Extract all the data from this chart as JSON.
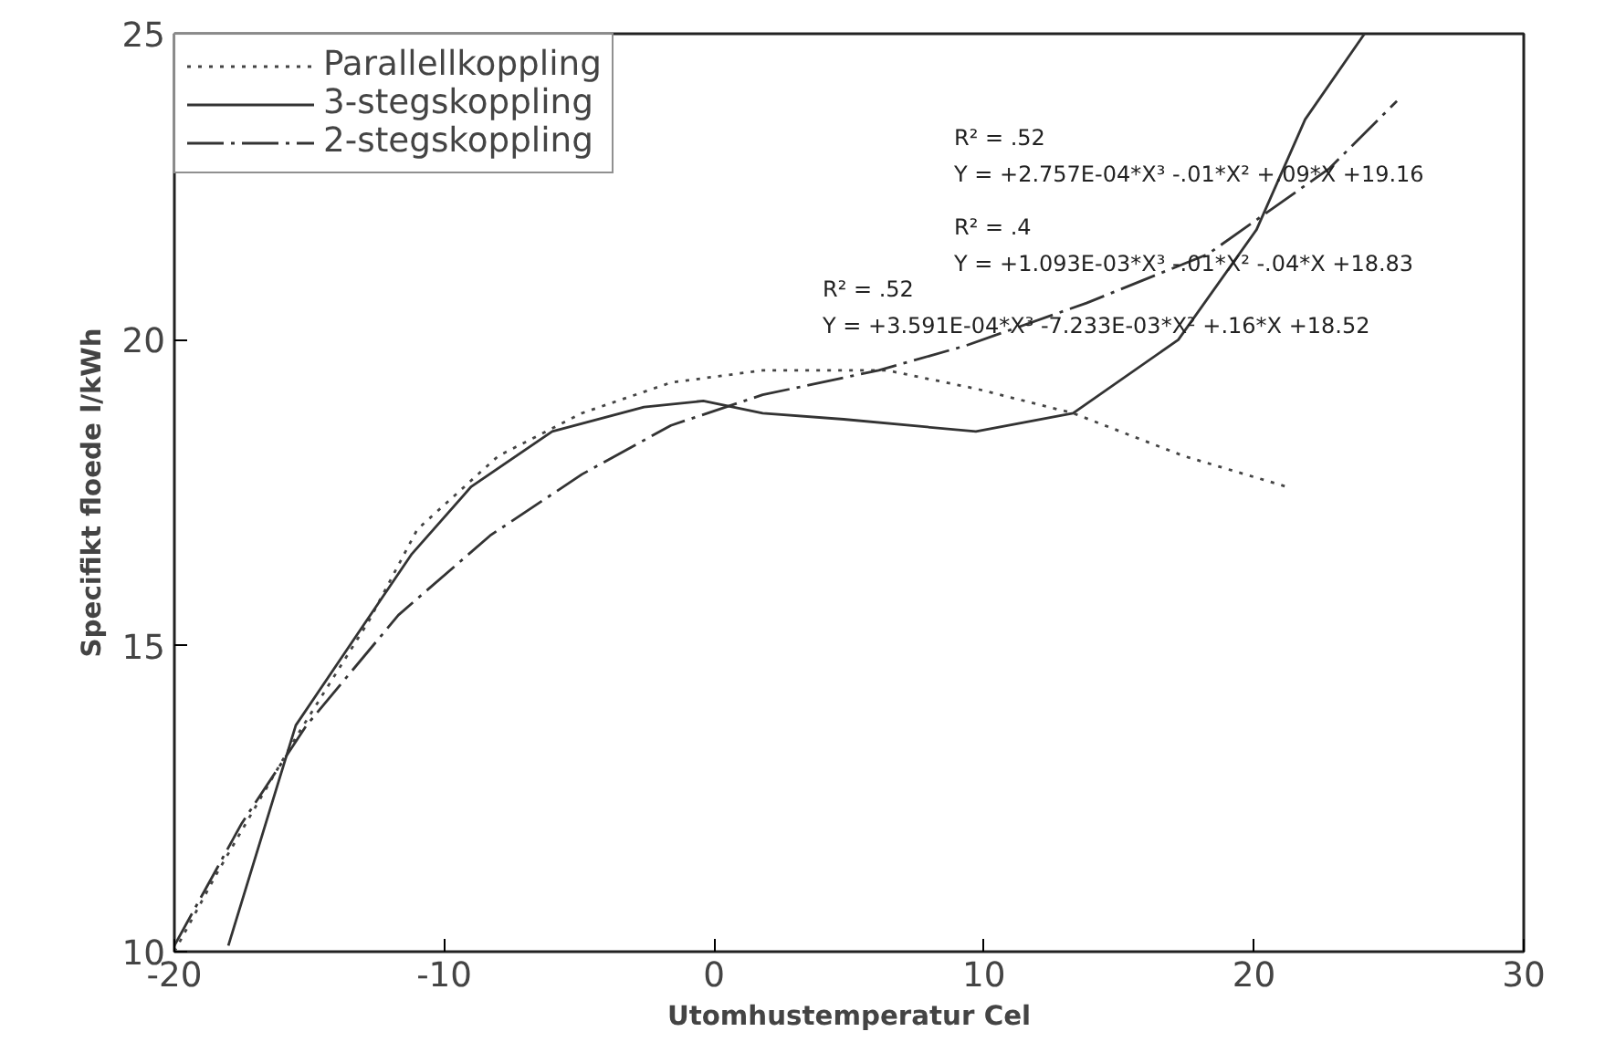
{
  "chart_data": {
    "type": "line",
    "xlabel": "Utomhustemperatur Cel",
    "ylabel": "Specifikt floede l/kWh",
    "xlim": [
      -20,
      30
    ],
    "ylim": [
      10,
      25
    ],
    "xticks": [
      -20,
      -10,
      0,
      10,
      20,
      30
    ],
    "yticks": [
      10,
      15,
      20,
      25
    ],
    "grid": false,
    "legend": "top left",
    "marker": "none",
    "series": [
      {
        "name": "Parallellkoppling",
        "color": "#444444",
        "line_style": "dotted",
        "x": [
          -20,
          -18.4,
          -15.5,
          -12.8,
          -11,
          -8,
          -4.9,
          -1.6,
          1.8,
          6.4,
          9.7,
          13.3,
          17.4,
          21.2
        ],
        "values": [
          10,
          11.3,
          13.5,
          15.4,
          16.9,
          18.1,
          18.8,
          19.3,
          19.5,
          19.5,
          19.2,
          18.8,
          18.1,
          17.6
        ]
      },
      {
        "name": "3-stegskoppling",
        "color": "#333333",
        "line_style": "solid",
        "x": [
          -18,
          -15.5,
          -13.2,
          -11.2,
          -9,
          -6,
          -2.6,
          -0.4,
          1.8,
          4.8,
          9.7,
          13.3,
          17.2,
          20.1,
          21.9,
          24.1
        ],
        "values": [
          10.1,
          13.7,
          15.2,
          16.5,
          17.6,
          18.5,
          18.9,
          19.0,
          18.8,
          18.7,
          18.5,
          18.8,
          20.0,
          21.8,
          23.6,
          25
        ]
      },
      {
        "name": "2-stegskoppling",
        "color": "#333333",
        "line_style": "dashdot",
        "x": [
          -20,
          -17.5,
          -15.1,
          -11.7,
          -8.3,
          -4.9,
          -1.6,
          1.8,
          6.1,
          9.3,
          13.8,
          18.3,
          22.8,
          25.3
        ],
        "values": [
          10.1,
          12.1,
          13.7,
          15.5,
          16.8,
          17.8,
          18.6,
          19.1,
          19.5,
          19.9,
          20.6,
          21.4,
          22.8,
          23.9
        ]
      }
    ],
    "annotations": [
      "R² = .52",
      "Y = +2.757E-04*X³ -.01*X² +.09*X +19.16",
      "R² = .4",
      "Y = +1.093E-03*X³ -.01*X² -.04*X +18.83",
      "R² = .52",
      "Y = +3.591E-04*X³ -7.233E-03*X² +.16*X +18.52"
    ]
  }
}
